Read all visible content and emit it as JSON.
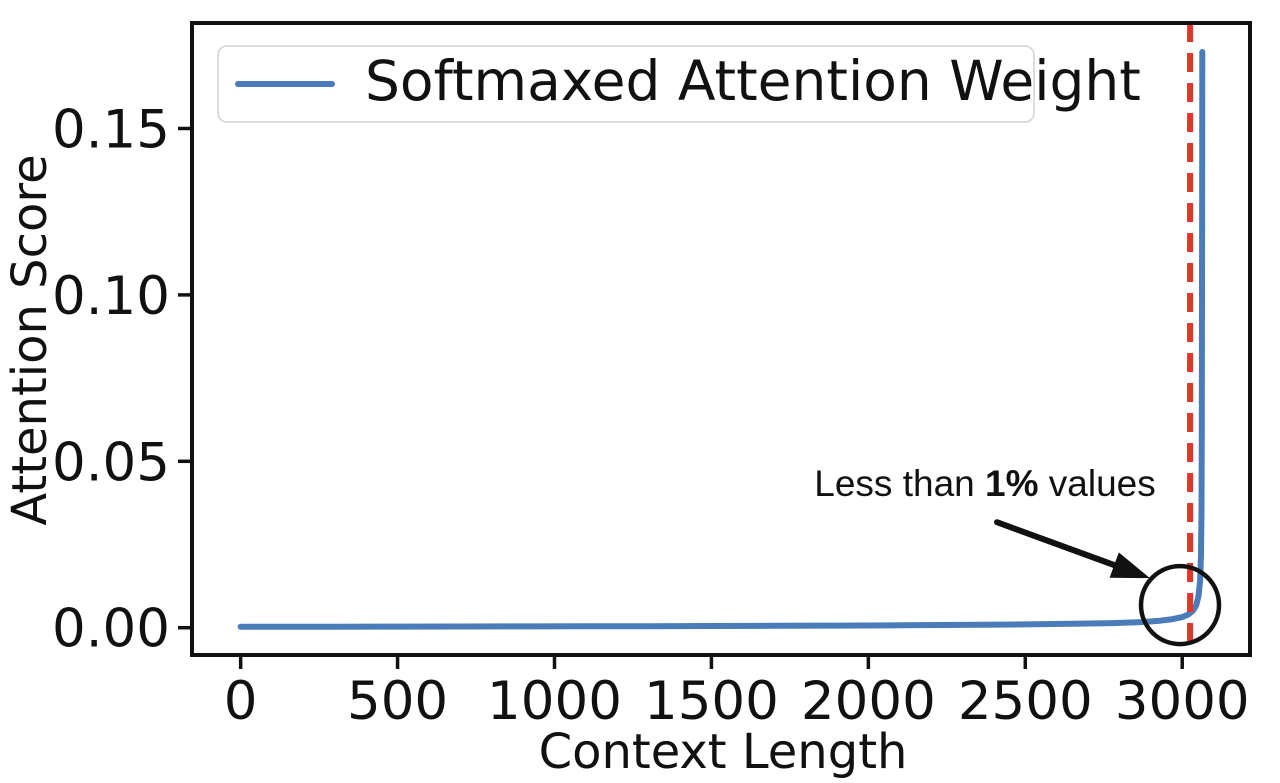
{
  "chart_data": {
    "type": "line",
    "title": "",
    "xlabel": "Context Length",
    "ylabel": "Attention Score",
    "x_ticks": [
      0,
      500,
      1000,
      1500,
      2000,
      2500,
      3000
    ],
    "x_tick_labels": [
      "0",
      "500",
      "1000",
      "1500",
      "2000",
      "2500",
      "3000"
    ],
    "y_ticks": [
      0.0,
      0.05,
      0.1,
      0.15
    ],
    "y_tick_labels": [
      "0.00",
      "0.05",
      "0.10",
      "0.15"
    ],
    "xlim": [
      -155,
      3216
    ],
    "ylim": [
      -0.0082,
      0.1817
    ],
    "grid": false,
    "legend": {
      "position": "upper left",
      "entries": [
        "Softmaxed Attention Weight"
      ]
    },
    "series": [
      {
        "name": "Softmaxed Attention Weight",
        "color": "#4a7cba",
        "points": [
          [
            0,
            0.0003
          ],
          [
            150,
            0.0003
          ],
          [
            300,
            0.00031
          ],
          [
            500,
            0.00033
          ],
          [
            700,
            0.00035
          ],
          [
            900,
            0.00038
          ],
          [
            1100,
            0.00041
          ],
          [
            1300,
            0.00045
          ],
          [
            1500,
            0.0005
          ],
          [
            1700,
            0.00056
          ],
          [
            1900,
            0.00063
          ],
          [
            2100,
            0.00072
          ],
          [
            2300,
            0.00084
          ],
          [
            2500,
            0.001
          ],
          [
            2650,
            0.0012
          ],
          [
            2780,
            0.0014
          ],
          [
            2870,
            0.0017
          ],
          [
            2930,
            0.0021
          ],
          [
            2970,
            0.0026
          ],
          [
            3000,
            0.0032
          ],
          [
            3020,
            0.004
          ],
          [
            3035,
            0.0052
          ],
          [
            3045,
            0.0068
          ],
          [
            3052,
            0.0095
          ],
          [
            3057,
            0.014
          ],
          [
            3060,
            0.022
          ],
          [
            3061.5,
            0.035
          ],
          [
            3062.5,
            0.06
          ],
          [
            3063.2,
            0.1
          ],
          [
            3063.7,
            0.14
          ],
          [
            3064,
            0.173
          ]
        ]
      }
    ],
    "vline": {
      "x": 3025,
      "color": "#e4352b",
      "style": "dashed"
    },
    "annotation": {
      "prefix": "Less than ",
      "bold": "1%",
      "suffix": " values",
      "full_text": "Less than 1% values",
      "text_center": [
        2372,
        0.0432
      ],
      "arrow_start": [
        2410,
        0.0317
      ],
      "arrow_tip": [
        2897,
        0.0149
      ],
      "circle_center": [
        2993,
        0.0068
      ],
      "color": "#111111"
    },
    "colors": {
      "axis": "#111111",
      "legend_border": "#dcdcdc"
    }
  }
}
